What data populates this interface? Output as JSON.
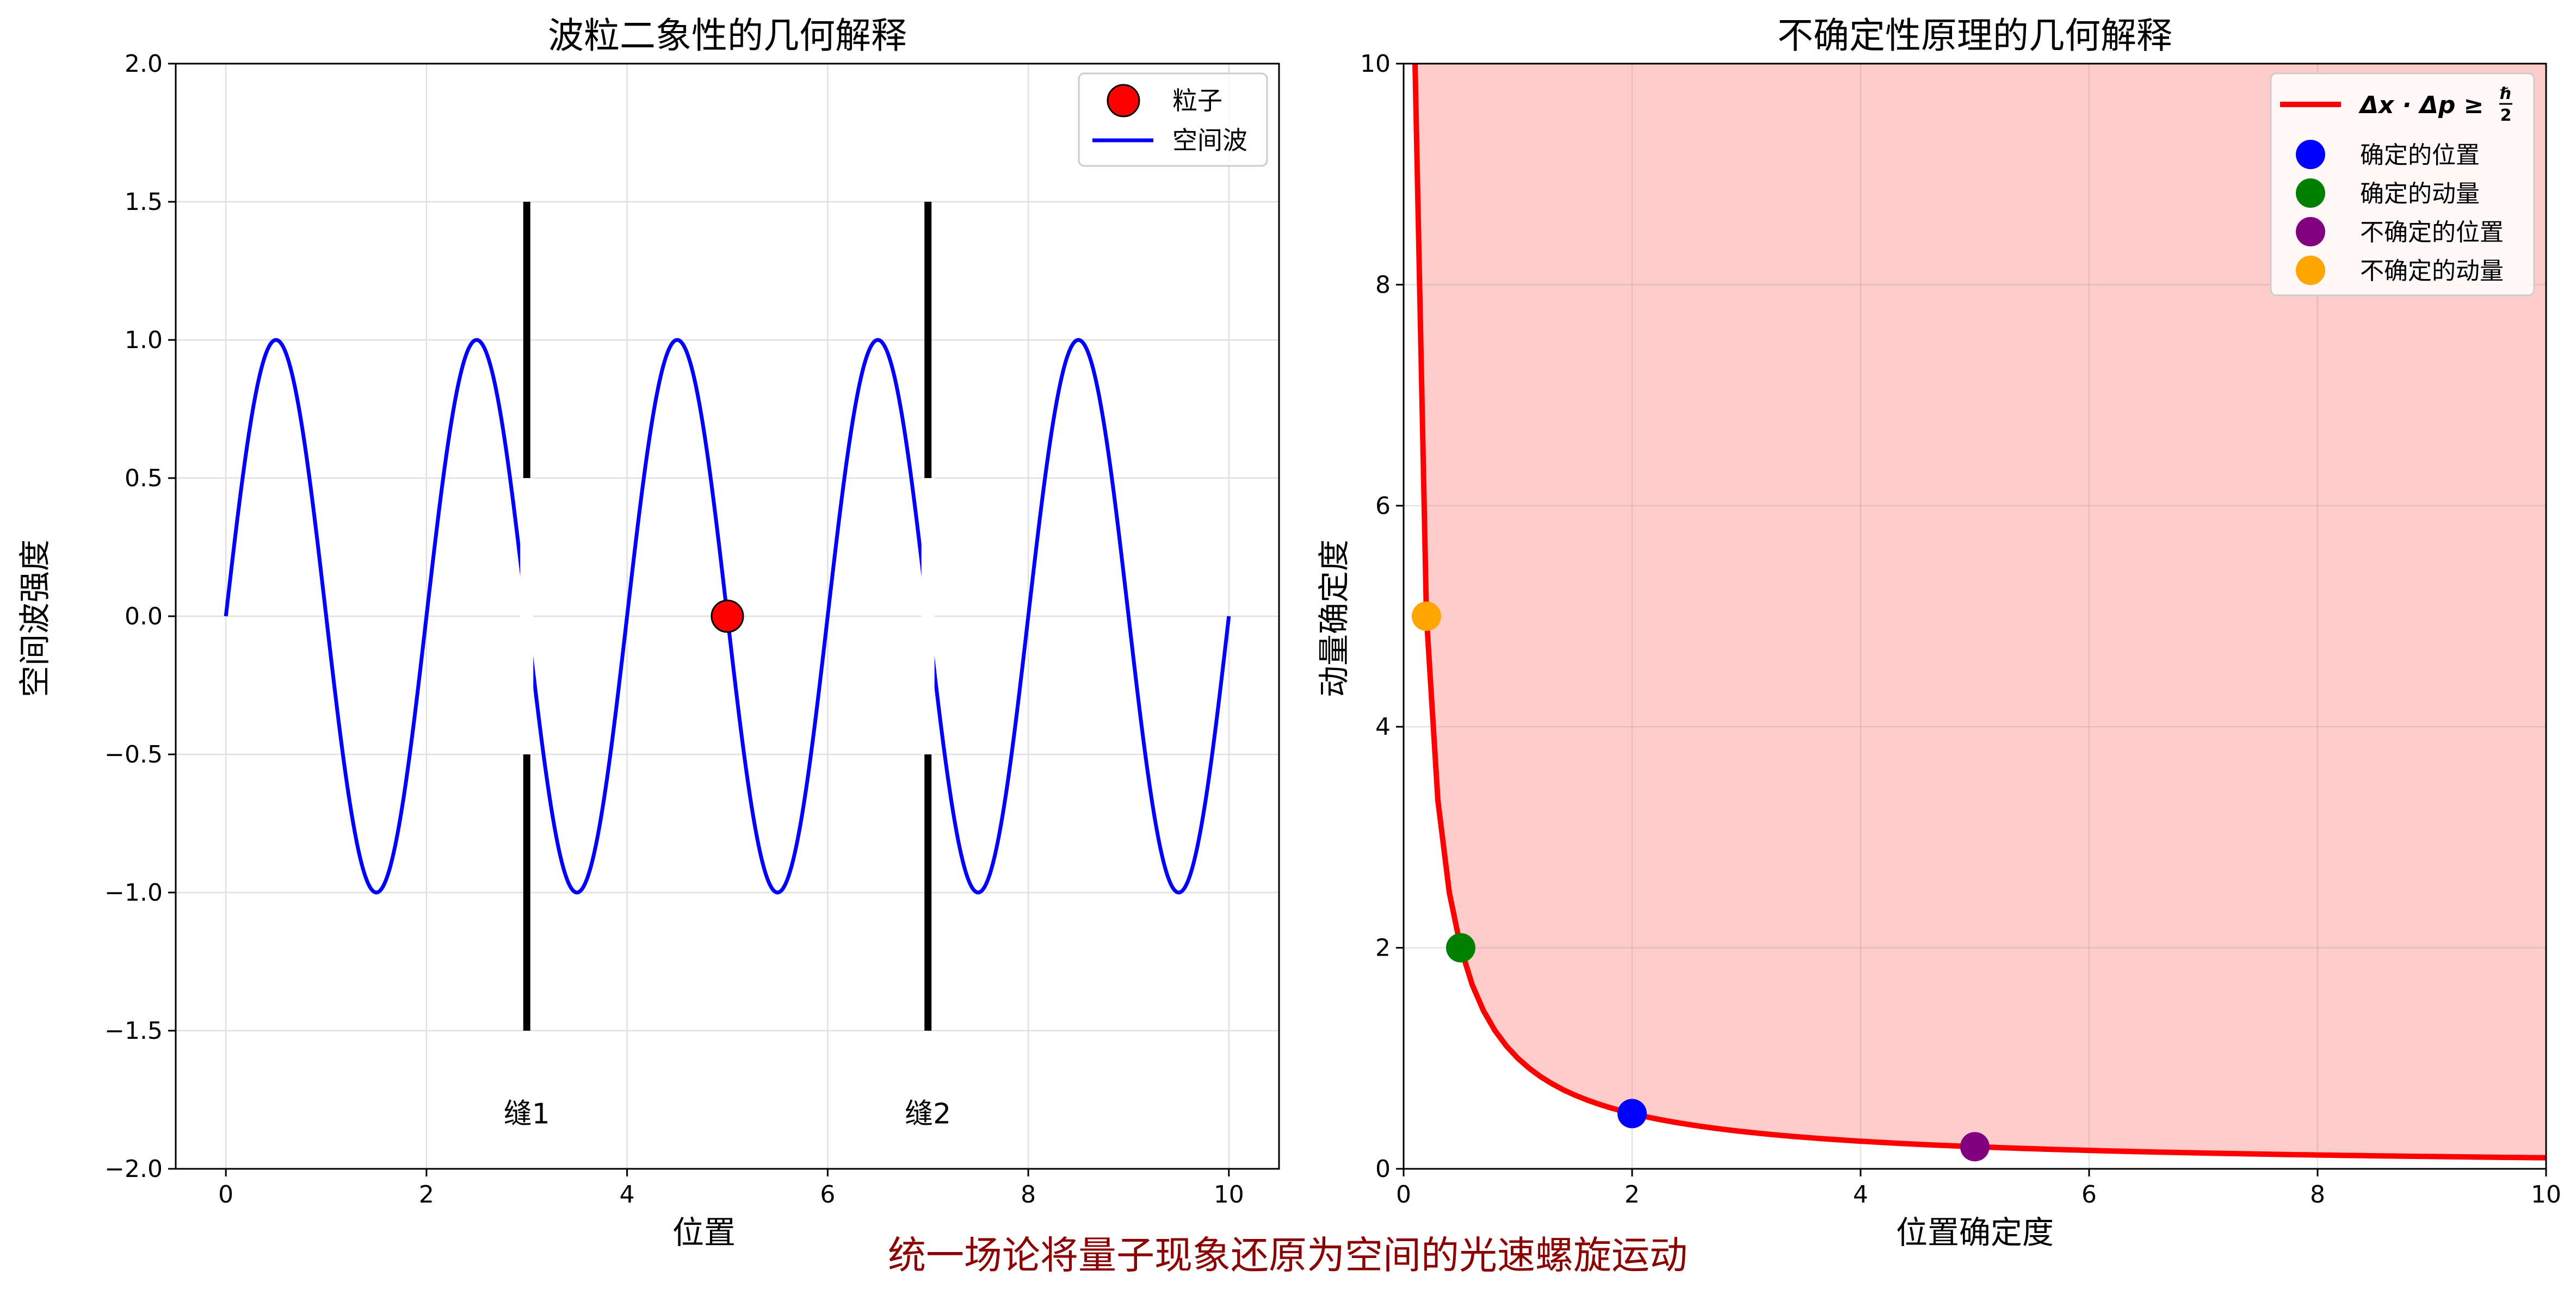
{
  "figure": {
    "caption": "统一场论将量子现象还原为空间的光速螺旋运动",
    "caption_color": "#8b0000"
  },
  "chart_data": [
    {
      "type": "line",
      "title": "波粒二象性的几何解释",
      "xlabel": "位置",
      "ylabel": "空间波强度",
      "xlim": [
        -0.5,
        10.5
      ],
      "ylim": [
        -2.0,
        2.0
      ],
      "xticks": [
        0,
        2,
        4,
        6,
        8,
        10
      ],
      "xtick_labels": [
        "0",
        "2",
        "4",
        "6",
        "8",
        "10"
      ],
      "yticks": [
        -2.0,
        -1.5,
        -1.0,
        -0.5,
        0.0,
        0.5,
        1.0,
        1.5,
        2.0
      ],
      "ytick_labels": [
        "−2.0",
        "−1.5",
        "−1.0",
        "−0.5",
        "0.0",
        "0.5",
        "1.0",
        "1.5",
        "2.0"
      ],
      "grid": true,
      "legend_position": "top-right",
      "series": [
        {
          "name": "空间波",
          "type": "line",
          "function": "sin(pi*x)",
          "x_range": [
            0,
            10
          ],
          "color": "#0000ff"
        },
        {
          "name": "粒子",
          "type": "scatter",
          "points": [
            [
              5,
              0
            ]
          ],
          "color": "#ff0000",
          "edge_color": "#000000"
        }
      ],
      "slits": [
        {
          "x": 3,
          "gap": [
            -0.5,
            0.5
          ],
          "extent": [
            -1.5,
            1.5
          ],
          "label": "缝1",
          "label_y": -1.8
        },
        {
          "x": 7,
          "gap": [
            -0.5,
            0.5
          ],
          "extent": [
            -1.5,
            1.5
          ],
          "label": "缝2",
          "label_y": -1.8
        }
      ],
      "slit_color": "#000000"
    },
    {
      "type": "line",
      "title": "不确定性原理的几何解释",
      "xlabel": "位置确定度",
      "ylabel": "动量确定度",
      "xlim": [
        0,
        10
      ],
      "ylim": [
        0,
        10
      ],
      "xticks": [
        0,
        2,
        4,
        6,
        8,
        10
      ],
      "xtick_labels": [
        "0",
        "2",
        "4",
        "6",
        "8",
        "10"
      ],
      "yticks": [
        0,
        2,
        4,
        6,
        8,
        10
      ],
      "ytick_labels": [
        "0",
        "2",
        "4",
        "6",
        "8",
        "10"
      ],
      "grid": true,
      "legend_position": "top-right",
      "curve": {
        "name_parts": [
          "Δx · Δp ≥ ",
          "ℏ",
          "2"
        ],
        "function": "1/x",
        "x_range": [
          0.1,
          10
        ],
        "color": "#ff0000",
        "fill_color": "#ffcccc"
      },
      "points": [
        {
          "name": "确定的位置",
          "x": 2,
          "y": 0.5,
          "color": "#0000ff"
        },
        {
          "name": "确定的动量",
          "x": 0.5,
          "y": 2,
          "color": "#008000"
        },
        {
          "name": "不确定的位置",
          "x": 5,
          "y": 0.2,
          "color": "#800080"
        },
        {
          "name": "不确定的动量",
          "x": 0.2,
          "y": 5,
          "color": "#ffa500"
        }
      ]
    }
  ]
}
